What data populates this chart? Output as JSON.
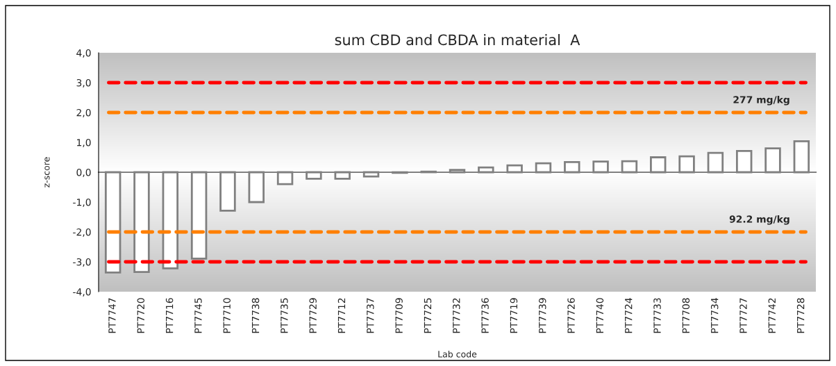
{
  "chart_data": {
    "type": "bar",
    "title": "sum CBD and CBDA in material  A",
    "xlabel": "Lab code",
    "ylabel": "z-score",
    "categories": [
      "PT7747",
      "PT7720",
      "PT7716",
      "PT7745",
      "PT7710",
      "PT7738",
      "PT7735",
      "PT7729",
      "PT7712",
      "PT7737",
      "PT7709",
      "PT7725",
      "PT7732",
      "PT7736",
      "PT7719",
      "PT7739",
      "PT7726",
      "PT7740",
      "PT7724",
      "PT7733",
      "PT7708",
      "PT7734",
      "PT7727",
      "PT7742",
      "PT7728"
    ],
    "values": [
      -3.36,
      -3.34,
      -3.22,
      -2.89,
      -1.29,
      -1.0,
      -0.4,
      -0.22,
      -0.22,
      -0.14,
      -0.02,
      0.02,
      0.08,
      0.16,
      0.23,
      0.3,
      0.34,
      0.36,
      0.37,
      0.5,
      0.53,
      0.65,
      0.71,
      0.8,
      1.04
    ],
    "color": "#ffffff",
    "ylim": [
      -4,
      4
    ],
    "yticks": [
      {
        "value": -4,
        "label": "-4,0"
      },
      {
        "value": -3,
        "label": "-3,0"
      },
      {
        "value": -2,
        "label": "-2,0"
      },
      {
        "value": -1,
        "label": "-1,0"
      },
      {
        "value": 0,
        "label": "0,0"
      },
      {
        "value": 1,
        "label": "1,0"
      },
      {
        "value": 2,
        "label": "2,0"
      },
      {
        "value": 3,
        "label": "3,0"
      },
      {
        "value": 4,
        "label": "4,0"
      }
    ],
    "ref_lines": [
      {
        "axis": "y",
        "value": 3,
        "color": "#ff0000",
        "line_style": "dashed"
      },
      {
        "axis": "y",
        "value": 2,
        "label": "277 mg/kg",
        "color": "#ff7f00",
        "line_style": "dashed"
      },
      {
        "axis": "y",
        "value": -2,
        "label": "92.2 mg/kg",
        "color": "#ff7f00",
        "line_style": "dashed"
      },
      {
        "axis": "y",
        "value": -3,
        "color": "#ff0000",
        "line_style": "dashed"
      }
    ],
    "grid": false,
    "legend": false
  }
}
